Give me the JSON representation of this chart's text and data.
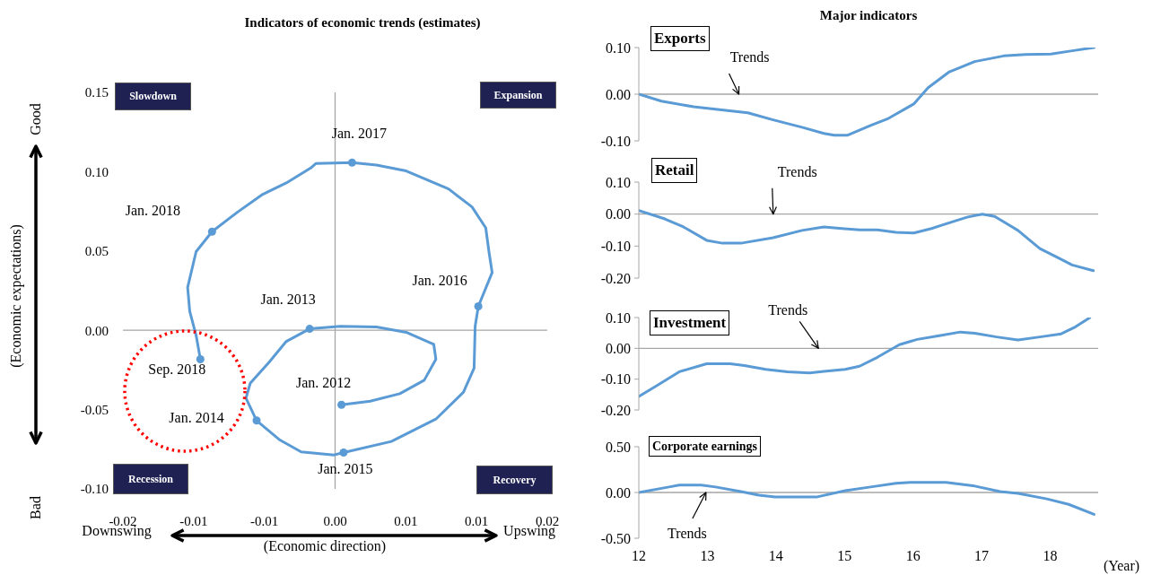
{
  "chart_data": [
    {
      "type": "line",
      "title": "Indicators of economic trends (estimates)",
      "xlabel": "(Economic direction)",
      "ylabel": "(Economic expectations)",
      "xlim": [
        -0.02,
        0.02
      ],
      "xticks": [
        {
          "value": -0.02,
          "label": "-0.02"
        },
        {
          "value": -0.01333,
          "label": "-0.01"
        },
        {
          "value": -0.00667,
          "label": "-0.01"
        },
        {
          "value": 0,
          "label": "0.00"
        },
        {
          "value": 0.00667,
          "label": "0.01"
        },
        {
          "value": 0.01333,
          "label": "0.01"
        },
        {
          "value": 0.02,
          "label": "0.02"
        }
      ],
      "ylim": [
        -0.1,
        0.15
      ],
      "yticks": [
        {
          "value": -0.1,
          "label": "-0.10"
        },
        {
          "value": -0.05,
          "label": "-0.05"
        },
        {
          "value": 0,
          "label": "0.00"
        },
        {
          "value": 0.05,
          "label": "0.05"
        },
        {
          "value": 0.1,
          "label": "0.10"
        },
        {
          "value": 0.15,
          "label": "0.15"
        }
      ],
      "series": [
        {
          "type": "line",
          "marker": "none",
          "color": "#5b9bd5",
          "x": [
            0.0006,
            0.0033,
            0.0061,
            0.0084,
            0.0095,
            0.0093,
            0.0067,
            0.0039,
            0.0005,
            -0.0024,
            -0.0046,
            -0.0062,
            -0.008,
            -0.0084,
            -0.0074,
            -0.0052,
            -0.0032,
            -0.0001,
            0.0008,
            0.0053,
            0.0095,
            0.0121,
            0.0131,
            0.0132,
            0.0135,
            0.0148,
            0.0145,
            0.0142,
            0.0129,
            0.0107,
            0.0067,
            0.0039,
            0.0016,
            -0.0018,
            -0.0023,
            -0.0046,
            -0.0069,
            -0.0091,
            -0.0116,
            -0.0131,
            -0.0139,
            -0.0137,
            -0.0131,
            -0.0127
          ],
          "values": [
            -0.047,
            -0.0447,
            -0.04,
            -0.0315,
            -0.0183,
            -0.0089,
            -0.0013,
            0.0021,
            0.0025,
            0.0009,
            -0.007,
            -0.02,
            -0.0334,
            -0.0428,
            -0.0569,
            -0.0692,
            -0.0767,
            -0.0786,
            -0.0771,
            -0.0701,
            -0.056,
            -0.039,
            -0.0239,
            0.0025,
            0.0151,
            0.0364,
            0.0496,
            0.0646,
            0.0778,
            0.0891,
            0.1005,
            0.1042,
            0.1057,
            0.1052,
            0.1023,
            0.0929,
            0.0854,
            0.075,
            0.0622,
            0.0496,
            0.027,
            0.0119,
            -0.0032,
            -0.0183
          ]
        },
        {
          "type": "scatter",
          "marker": "circle",
          "color": "#5b9bd5",
          "x": [
            0.0006,
            -0.0024,
            -0.0074,
            0.0008,
            0.0135,
            0.0016,
            -0.0116,
            -0.0127
          ],
          "values": [
            -0.047,
            0.0009,
            -0.0569,
            -0.0771,
            0.0151,
            0.1057,
            0.0622,
            -0.0183
          ]
        }
      ],
      "ref_lines": [
        {
          "axis": "x",
          "value": 0,
          "color": "#a6a6a6"
        },
        {
          "axis": "y",
          "value": 0,
          "color": "#a6a6a6"
        }
      ],
      "annotations": [
        "Slowdown",
        "Expansion",
        "Recession",
        "Recovery",
        "Good",
        "Bad",
        "Downswing",
        "Upswing",
        {
          "text": "Jan. 2012",
          "x": 0.0006,
          "y": -0.047
        },
        {
          "text": "Jan. 2013",
          "x": -0.0024,
          "y": 0.0009
        },
        {
          "text": "Jan. 2014",
          "x": -0.0074,
          "y": -0.0569
        },
        {
          "text": "Jan. 2015",
          "x": 0.0008,
          "y": -0.0771
        },
        {
          "text": "Jan. 2016",
          "x": 0.0135,
          "y": 0.0151
        },
        {
          "text": "Jan. 2017",
          "x": 0.0016,
          "y": 0.1057
        },
        {
          "text": "Jan. 2018",
          "x": -0.0116,
          "y": 0.0622
        },
        {
          "text": "Sep. 2018",
          "x": -0.0127,
          "y": -0.0183
        }
      ]
    },
    {
      "type": "line",
      "title": "Major indicators",
      "subtitle": "Exports",
      "color": "#5b9bd5",
      "tick_labels": "y",
      "x": [
        12,
        12.33,
        12.8,
        13.12,
        13.59,
        13.96,
        14.38,
        14.7,
        14.85,
        15.04,
        15.38,
        15.64,
        16.01,
        16.22,
        16.53,
        16.9,
        17.32,
        17.64,
        18.01,
        18.32,
        18.64
      ],
      "values": [
        0,
        -0.015,
        -0.027,
        -0.032,
        -0.04,
        -0.055,
        -0.071,
        -0.084,
        -0.088,
        -0.088,
        -0.067,
        -0.052,
        -0.021,
        0.014,
        0.048,
        0.07,
        0.082,
        0.085,
        0.086,
        0.093,
        0.1
      ],
      "xlim": [
        12,
        18.7
      ],
      "xticks": [
        12,
        13,
        14,
        15,
        16,
        17,
        18
      ],
      "ylim": [
        -0.1,
        0.1
      ],
      "yticks": [
        {
          "value": -0.1,
          "label": "-0.10"
        },
        {
          "value": 0,
          "label": "0.00"
        },
        {
          "value": 0.1,
          "label": "0.10"
        }
      ],
      "ref_lines": [
        {
          "axis": "y",
          "value": 0,
          "color": "#a6a6a6"
        }
      ],
      "annotations": [
        {
          "text": "Trends",
          "x": 13.46,
          "y": 0
        }
      ]
    },
    {
      "type": "line",
      "title": "Retail",
      "color": "#5b9bd5",
      "tick_labels": "y",
      "x": [
        12,
        12.38,
        12.65,
        12.99,
        13.22,
        13.49,
        13.96,
        14.38,
        14.7,
        14.96,
        15.22,
        15.48,
        15.75,
        16.01,
        16.27,
        16.59,
        16.8,
        17.01,
        17.19,
        17.53,
        17.85,
        18.11,
        18.32,
        18.63
      ],
      "values": [
        0.011,
        -0.015,
        -0.04,
        -0.082,
        -0.091,
        -0.091,
        -0.074,
        -0.051,
        -0.04,
        -0.045,
        -0.049,
        -0.049,
        -0.057,
        -0.059,
        -0.045,
        -0.023,
        -0.009,
        0,
        -0.007,
        -0.051,
        -0.108,
        -0.136,
        -0.159,
        -0.177
      ],
      "xlim": [
        12,
        18.7
      ],
      "xticks": [
        12,
        13,
        14,
        15,
        16,
        17,
        18
      ],
      "ylim": [
        -0.2,
        0.1
      ],
      "yticks": [
        {
          "value": -0.2,
          "label": "-0.20"
        },
        {
          "value": -0.1,
          "label": "-0.10"
        },
        {
          "value": 0,
          "label": "0.00"
        },
        {
          "value": 0.1,
          "label": "0.10"
        }
      ],
      "ref_lines": [
        {
          "axis": "y",
          "value": 0,
          "color": "#a6a6a6"
        }
      ],
      "annotations": [
        {
          "text": "Trends",
          "x": 13.96,
          "y": 0
        }
      ]
    },
    {
      "type": "line",
      "title": "Investment",
      "color": "#5b9bd5",
      "tick_labels": "y",
      "x": [
        12,
        12.25,
        12.59,
        12.99,
        13.33,
        13.54,
        13.85,
        14.17,
        14.49,
        14.7,
        15.01,
        15.22,
        15.48,
        15.8,
        16.06,
        16.38,
        16.69,
        16.9,
        17.22,
        17.53,
        17.85,
        18.16,
        18.37,
        18.58
      ],
      "values": [
        -0.156,
        -0.123,
        -0.076,
        -0.05,
        -0.05,
        -0.056,
        -0.068,
        -0.076,
        -0.08,
        -0.075,
        -0.068,
        -0.058,
        -0.029,
        0.012,
        0.029,
        0.041,
        0.053,
        0.049,
        0.037,
        0.027,
        0.037,
        0.047,
        0.07,
        0.1
      ],
      "xlim": [
        12,
        18.7
      ],
      "xticks": [
        12,
        13,
        14,
        15,
        16,
        17,
        18
      ],
      "ylim": [
        -0.2,
        0.1
      ],
      "yticks": [
        {
          "value": -0.2,
          "label": "-0.20"
        },
        {
          "value": -0.1,
          "label": "-0.10"
        },
        {
          "value": 0,
          "label": "0.00"
        },
        {
          "value": 0.1,
          "label": "0.10"
        }
      ],
      "ref_lines": [
        {
          "axis": "y",
          "value": 0,
          "color": "#a6a6a6"
        }
      ],
      "annotations": [
        {
          "text": "Trends",
          "x": 14.62,
          "y": 0
        }
      ]
    },
    {
      "type": "line",
      "title": "Corporate earnings",
      "xlabel": "(Year)",
      "color": "#5b9bd5",
      "x": [
        12,
        12.44,
        12.59,
        12.91,
        13.12,
        13.49,
        13.75,
        13.99,
        14.59,
        15.01,
        15.38,
        15.75,
        15.96,
        16.48,
        16.9,
        17.27,
        17.53,
        17.95,
        18.27,
        18.64
      ],
      "values": [
        0,
        0.06,
        0.08,
        0.08,
        0.06,
        0.01,
        -0.03,
        -0.05,
        -0.05,
        0.02,
        0.06,
        0.1,
        0.11,
        0.11,
        0.07,
        0.01,
        -0.01,
        -0.07,
        -0.13,
        -0.24
      ],
      "xlim": [
        12,
        18.7
      ],
      "xticks": [
        12,
        13,
        14,
        15,
        16,
        17,
        18
      ],
      "ylim": [
        -0.5,
        0.5
      ],
      "yticks": [
        {
          "value": -0.5,
          "label": "-0.50"
        },
        {
          "value": 0,
          "label": "0.00"
        },
        {
          "value": 0.5,
          "label": "0.50"
        }
      ],
      "ref_lines": [
        {
          "axis": "y",
          "value": 0,
          "color": "#a6a6a6"
        }
      ],
      "annotations": [
        {
          "text": "Trends",
          "x": 12.98,
          "y": 0
        }
      ]
    }
  ]
}
